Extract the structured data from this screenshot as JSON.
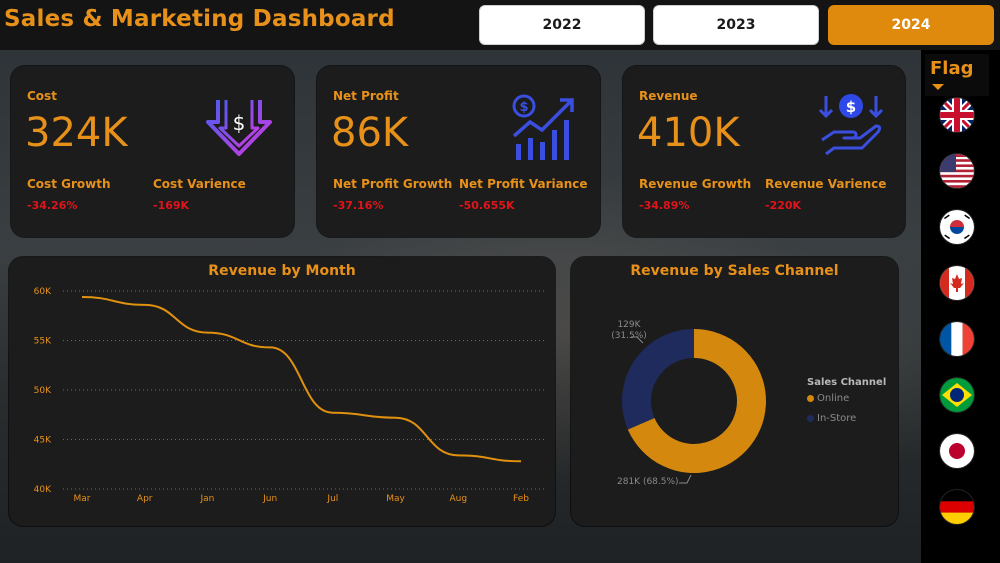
{
  "header": {
    "title": "Sales & Marketing Dashboard"
  },
  "years": [
    {
      "label": "2022",
      "selected": false
    },
    {
      "label": "2023",
      "selected": false
    },
    {
      "label": "2024",
      "selected": true
    }
  ],
  "kpis": {
    "cost": {
      "label": "Cost",
      "value": "324K",
      "growth_label": "Cost Growth",
      "growth_value": "-34.26%",
      "variance_label": "Cost Varience",
      "variance_value": "-169K"
    },
    "net_profit": {
      "label": "Net Profit",
      "value": "86K",
      "growth_label": "Net Profit Growth",
      "growth_value": "-37.16%",
      "variance_label": "Net Profit Variance",
      "variance_value": "-50.655K"
    },
    "revenue": {
      "label": "Revenue",
      "value": "410K",
      "growth_label": "Revenue Growth",
      "growth_value": "-34.89%",
      "variance_label": "Revenue Varience",
      "variance_value": "-220K"
    }
  },
  "flags": {
    "label": "Flag",
    "items": [
      "united-kingdom",
      "united-states",
      "south-korea",
      "canada",
      "france",
      "brazil",
      "japan",
      "germany"
    ]
  },
  "colors": {
    "accent": "#e8911a",
    "negative": "#e0141a",
    "series_online": "#d4890e",
    "series_instore": "#1f2b5c",
    "icon_blue": "#3a4fe0"
  },
  "chart_data": [
    {
      "type": "line",
      "title": "Revenue by Month",
      "categories": [
        "Mar",
        "Apr",
        "Jan",
        "Jun",
        "Jul",
        "May",
        "Aug",
        "Feb"
      ],
      "values": [
        59400,
        58600,
        55800,
        54300,
        47700,
        47200,
        43400,
        42800
      ],
      "y_ticks": [
        "60K",
        "55K",
        "50K",
        "45K",
        "40K"
      ],
      "ylim": [
        40000,
        60000
      ],
      "grid": true
    },
    {
      "type": "pie",
      "title": "Revenue by Sales Channel",
      "legend_title": "Sales Channel",
      "series": [
        {
          "name": "Online",
          "value": 281000,
          "label": "281K (68.5%)"
        },
        {
          "name": "In-Store",
          "value": 129000,
          "label": "129K (31.5%)"
        }
      ]
    }
  ]
}
